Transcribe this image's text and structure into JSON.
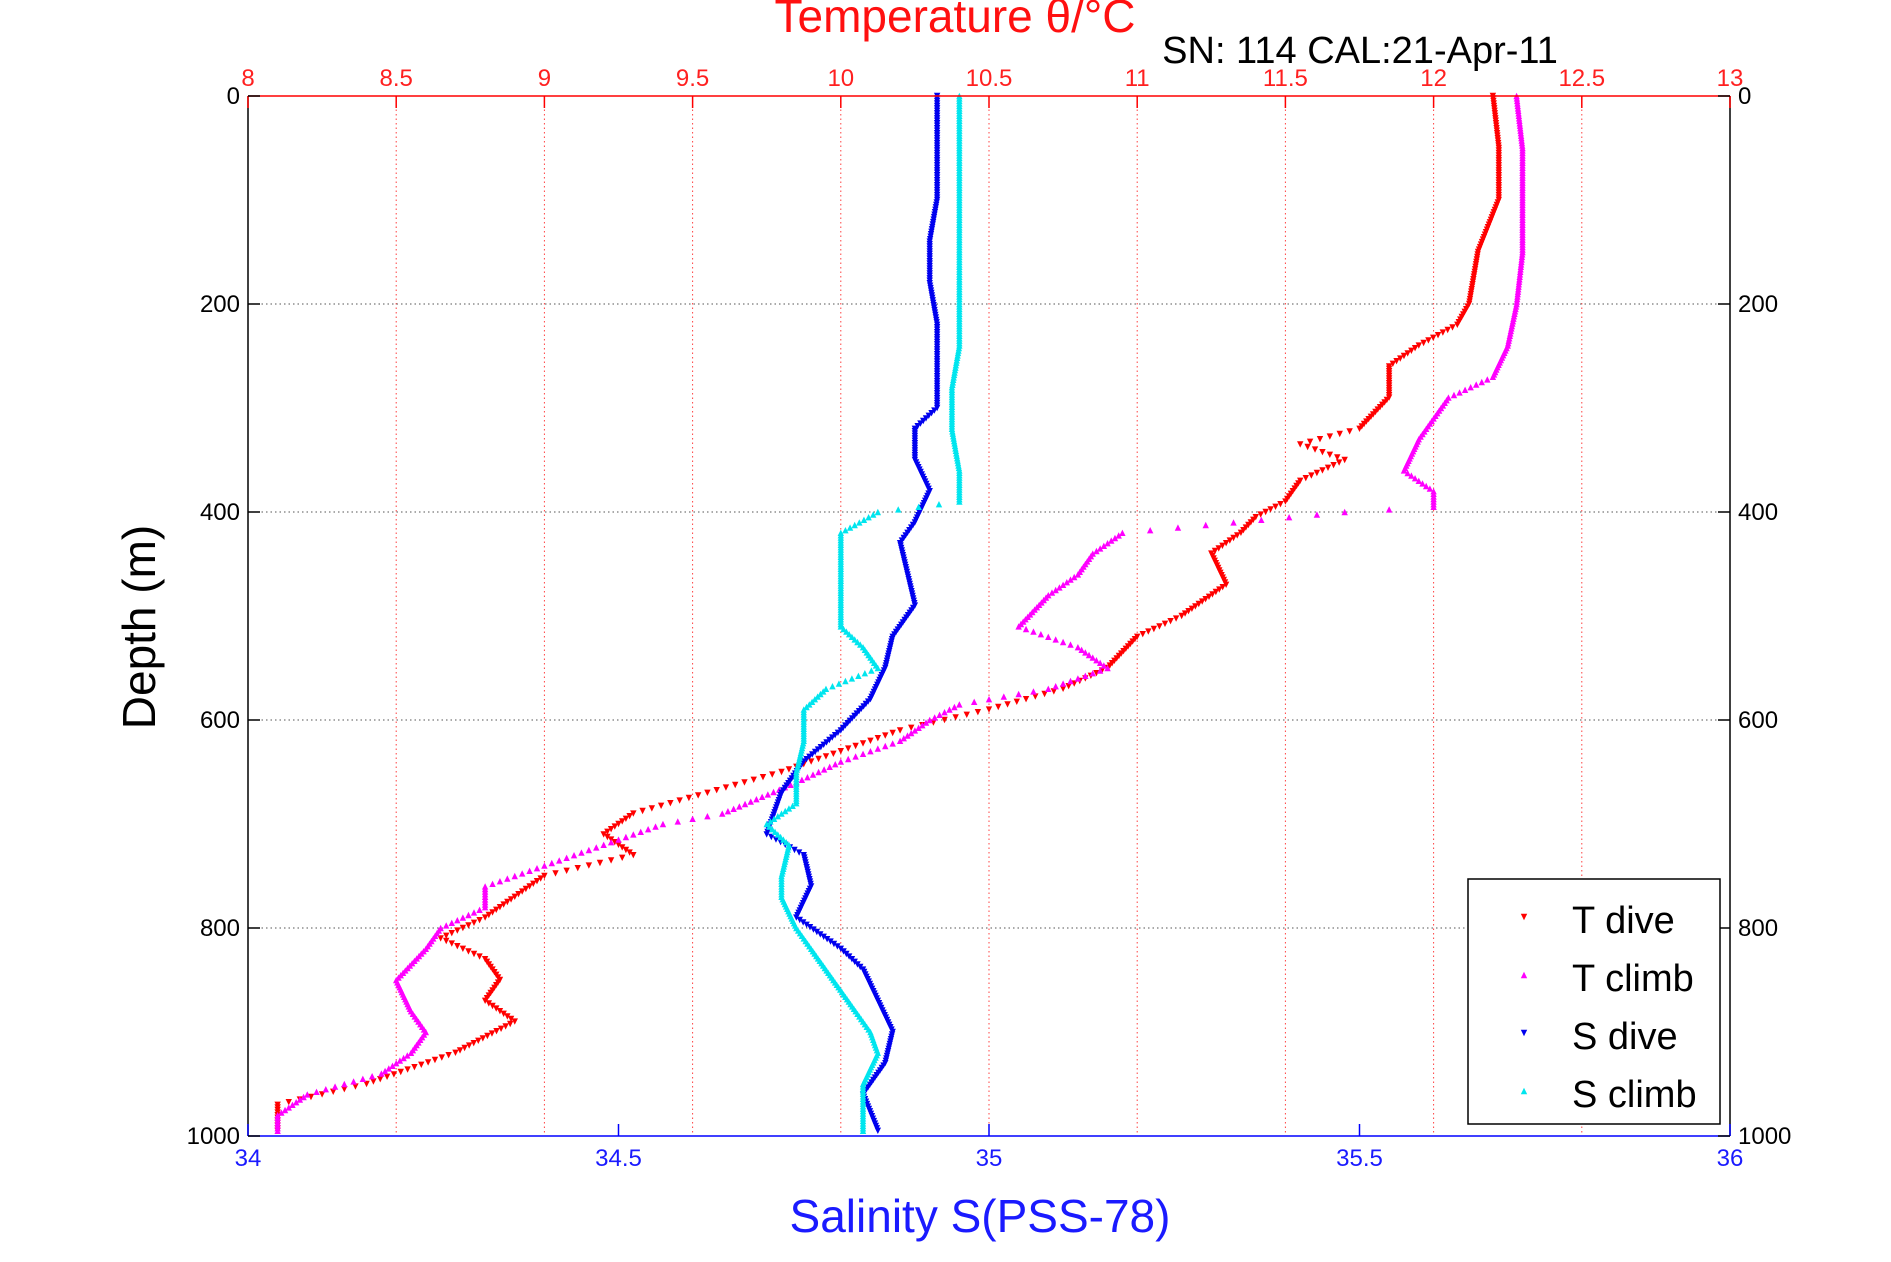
{
  "chart_data": {
    "type": "scatter",
    "title": "Temperature θ/°C",
    "subtitle": "SN: 114  CAL:21-Apr-11",
    "xlabel": "Salinity S(PSS-78)",
    "x2label": "Temperature θ/°C",
    "ylabel": "Depth (m)",
    "xlim": [
      34,
      36
    ],
    "x2lim": [
      8,
      13
    ],
    "ylim": [
      0,
      1000
    ],
    "y_reversed": true,
    "grid": true,
    "legend_position": "bottom-right",
    "x_ticks": [
      "34",
      "34.5",
      "35",
      "35.5",
      "36"
    ],
    "x2_ticks": [
      "8",
      "8.5",
      "9",
      "9.5",
      "10",
      "10.5",
      "11",
      "11.5",
      "12",
      "12.5",
      "13"
    ],
    "y_ticks": [
      "0",
      "200",
      "400",
      "600",
      "800",
      "1000"
    ],
    "series": [
      {
        "name": "T dive",
        "axis": "temperature",
        "color": "#ff0000",
        "marker": "triangle-down",
        "points": [
          [
            12.2,
            0
          ],
          [
            12.22,
            50
          ],
          [
            12.22,
            100
          ],
          [
            12.15,
            150
          ],
          [
            12.12,
            200
          ],
          [
            12.08,
            220
          ],
          [
            11.95,
            240
          ],
          [
            11.85,
            260
          ],
          [
            11.85,
            290
          ],
          [
            11.75,
            320
          ],
          [
            11.55,
            335
          ],
          [
            11.7,
            350
          ],
          [
            11.55,
            370
          ],
          [
            11.5,
            390
          ],
          [
            11.4,
            405
          ],
          [
            11.35,
            420
          ],
          [
            11.25,
            440
          ],
          [
            11.3,
            470
          ],
          [
            11.15,
            500
          ],
          [
            11.0,
            520
          ],
          [
            10.9,
            550
          ],
          [
            10.75,
            570
          ],
          [
            10.5,
            590
          ],
          [
            10.2,
            610
          ],
          [
            10.0,
            630
          ],
          [
            9.8,
            650
          ],
          [
            9.55,
            670
          ],
          [
            9.3,
            690
          ],
          [
            9.2,
            710
          ],
          [
            9.3,
            730
          ],
          [
            9.0,
            750
          ],
          [
            8.9,
            770
          ],
          [
            8.8,
            790
          ],
          [
            8.65,
            810
          ],
          [
            8.8,
            830
          ],
          [
            8.85,
            850
          ],
          [
            8.8,
            870
          ],
          [
            8.9,
            890
          ],
          [
            8.7,
            920
          ],
          [
            8.4,
            950
          ],
          [
            8.1,
            970
          ],
          [
            8.1,
            995
          ]
        ]
      },
      {
        "name": "T climb",
        "axis": "temperature",
        "color": "#ff00ff",
        "marker": "triangle-up",
        "points": [
          [
            12.28,
            0
          ],
          [
            12.3,
            50
          ],
          [
            12.3,
            100
          ],
          [
            12.3,
            150
          ],
          [
            12.28,
            200
          ],
          [
            12.25,
            240
          ],
          [
            12.2,
            270
          ],
          [
            12.05,
            290
          ],
          [
            12.0,
            310
          ],
          [
            11.95,
            330
          ],
          [
            11.9,
            360
          ],
          [
            12.0,
            380
          ],
          [
            12.0,
            395
          ],
          [
            11.7,
            400
          ],
          [
            10.95,
            420
          ],
          [
            10.85,
            440
          ],
          [
            10.8,
            460
          ],
          [
            10.7,
            480
          ],
          [
            10.6,
            510
          ],
          [
            10.8,
            530
          ],
          [
            10.9,
            550
          ],
          [
            10.7,
            570
          ],
          [
            10.4,
            585
          ],
          [
            10.3,
            600
          ],
          [
            10.2,
            620
          ],
          [
            10.0,
            640
          ],
          [
            9.85,
            660
          ],
          [
            9.6,
            690
          ],
          [
            9.4,
            700
          ],
          [
            9.2,
            720
          ],
          [
            9.0,
            740
          ],
          [
            8.8,
            760
          ],
          [
            8.8,
            780
          ],
          [
            8.65,
            800
          ],
          [
            8.6,
            820
          ],
          [
            8.5,
            850
          ],
          [
            8.55,
            880
          ],
          [
            8.6,
            900
          ],
          [
            8.55,
            920
          ],
          [
            8.45,
            940
          ],
          [
            8.2,
            960
          ],
          [
            8.1,
            980
          ],
          [
            8.1,
            995
          ]
        ]
      },
      {
        "name": "S dive",
        "axis": "salinity",
        "color": "#0000ee",
        "marker": "triangle-down",
        "points": [
          [
            34.93,
            0
          ],
          [
            34.93,
            50
          ],
          [
            34.93,
            100
          ],
          [
            34.92,
            140
          ],
          [
            34.92,
            180
          ],
          [
            34.93,
            220
          ],
          [
            34.93,
            260
          ],
          [
            34.93,
            300
          ],
          [
            34.9,
            320
          ],
          [
            34.9,
            350
          ],
          [
            34.92,
            380
          ],
          [
            34.9,
            410
          ],
          [
            34.88,
            430
          ],
          [
            34.89,
            460
          ],
          [
            34.9,
            490
          ],
          [
            34.87,
            520
          ],
          [
            34.86,
            550
          ],
          [
            34.84,
            580
          ],
          [
            34.8,
            610
          ],
          [
            34.75,
            640
          ],
          [
            34.72,
            670
          ],
          [
            34.7,
            710
          ],
          [
            34.75,
            730
          ],
          [
            34.76,
            760
          ],
          [
            34.74,
            790
          ],
          [
            34.8,
            820
          ],
          [
            34.83,
            840
          ],
          [
            34.85,
            870
          ],
          [
            34.87,
            900
          ],
          [
            34.86,
            930
          ],
          [
            34.83,
            960
          ],
          [
            34.85,
            995
          ]
        ]
      },
      {
        "name": "S climb",
        "axis": "salinity",
        "color": "#00e5ee",
        "marker": "triangle-up",
        "points": [
          [
            34.96,
            0
          ],
          [
            34.96,
            50
          ],
          [
            34.96,
            100
          ],
          [
            34.96,
            150
          ],
          [
            34.96,
            200
          ],
          [
            34.96,
            240
          ],
          [
            34.95,
            280
          ],
          [
            34.95,
            320
          ],
          [
            34.96,
            360
          ],
          [
            34.96,
            390
          ],
          [
            34.85,
            400
          ],
          [
            34.8,
            420
          ],
          [
            34.8,
            450
          ],
          [
            34.8,
            480
          ],
          [
            34.8,
            510
          ],
          [
            34.83,
            530
          ],
          [
            34.85,
            550
          ],
          [
            34.78,
            570
          ],
          [
            34.75,
            590
          ],
          [
            34.75,
            620
          ],
          [
            34.74,
            650
          ],
          [
            34.74,
            680
          ],
          [
            34.7,
            700
          ],
          [
            34.73,
            720
          ],
          [
            34.72,
            750
          ],
          [
            34.72,
            770
          ],
          [
            34.74,
            800
          ],
          [
            34.76,
            820
          ],
          [
            34.79,
            850
          ],
          [
            34.82,
            880
          ],
          [
            34.84,
            900
          ],
          [
            34.85,
            920
          ],
          [
            34.83,
            950
          ],
          [
            34.83,
            995
          ]
        ]
      }
    ]
  }
}
